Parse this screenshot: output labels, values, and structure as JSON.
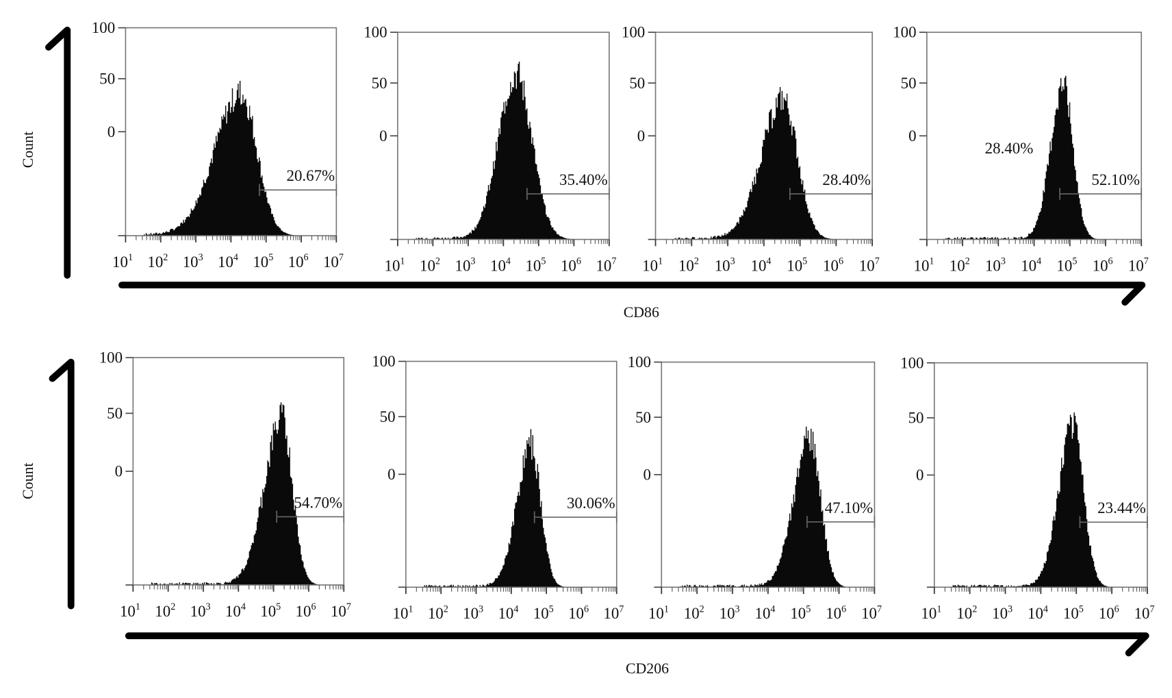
{
  "chart_data": {
    "type": "histogram-grid",
    "x_scale": "log",
    "x_ticks": [
      "1",
      "2",
      "3",
      "4",
      "5",
      "6",
      "7"
    ],
    "x_tick_base": "10",
    "xlim_log10": [
      1,
      7
    ],
    "y_tick_labels": [
      "100",
      "50",
      "0"
    ],
    "rows": [
      {
        "marker": "CD86",
        "ylabel": "Count",
        "panels": [
          {
            "gate_percent": "20.67%",
            "peak_log10": 4.28,
            "peak_rel_height": 0.72,
            "spread_left": 0.75,
            "spread_right": 0.45,
            "gate_start_log10": 4.81,
            "gate_rel_height": 0.22
          },
          {
            "gate_percent": "35.40%",
            "peak_log10": 4.35,
            "peak_rel_height": 0.84,
            "spread_left": 0.5,
            "spread_right": 0.45,
            "gate_start_log10": 4.67,
            "gate_rel_height": 0.22
          },
          {
            "gate_percent": "28.40%",
            "peak_log10": 4.52,
            "peak_rel_height": 0.71,
            "spread_left": 0.6,
            "spread_right": 0.4,
            "gate_start_log10": 4.72,
            "gate_rel_height": 0.22
          },
          {
            "gate_percent": "52.10%",
            "extra_label": "28.40%",
            "peak_log10": 4.8,
            "peak_rel_height": 0.78,
            "spread_left": 0.35,
            "spread_right": 0.28,
            "gate_start_log10": 4.72,
            "gate_rel_height": 0.22
          }
        ]
      },
      {
        "marker": "CD206",
        "ylabel": "Count",
        "panels": [
          {
            "gate_percent": "54.70%",
            "peak_log10": 5.23,
            "peak_rel_height": 0.77,
            "spread_left": 0.5,
            "spread_right": 0.3,
            "gate_start_log10": 5.09,
            "gate_rel_height": 0.3
          },
          {
            "gate_percent": "30.06%",
            "peak_log10": 4.55,
            "peak_rel_height": 0.66,
            "spread_left": 0.4,
            "spread_right": 0.28,
            "gate_start_log10": 4.66,
            "gate_rel_height": 0.31
          },
          {
            "gate_percent": "47.10%",
            "peak_log10": 5.17,
            "peak_rel_height": 0.7,
            "spread_left": 0.45,
            "spread_right": 0.3,
            "gate_start_log10": 5.1,
            "gate_rel_height": 0.29
          },
          {
            "gate_percent": "23.44%",
            "peak_log10": 4.89,
            "peak_rel_height": 0.75,
            "spread_left": 0.4,
            "spread_right": 0.3,
            "gate_start_log10": 5.1,
            "gate_rel_height": 0.29
          }
        ]
      }
    ]
  }
}
